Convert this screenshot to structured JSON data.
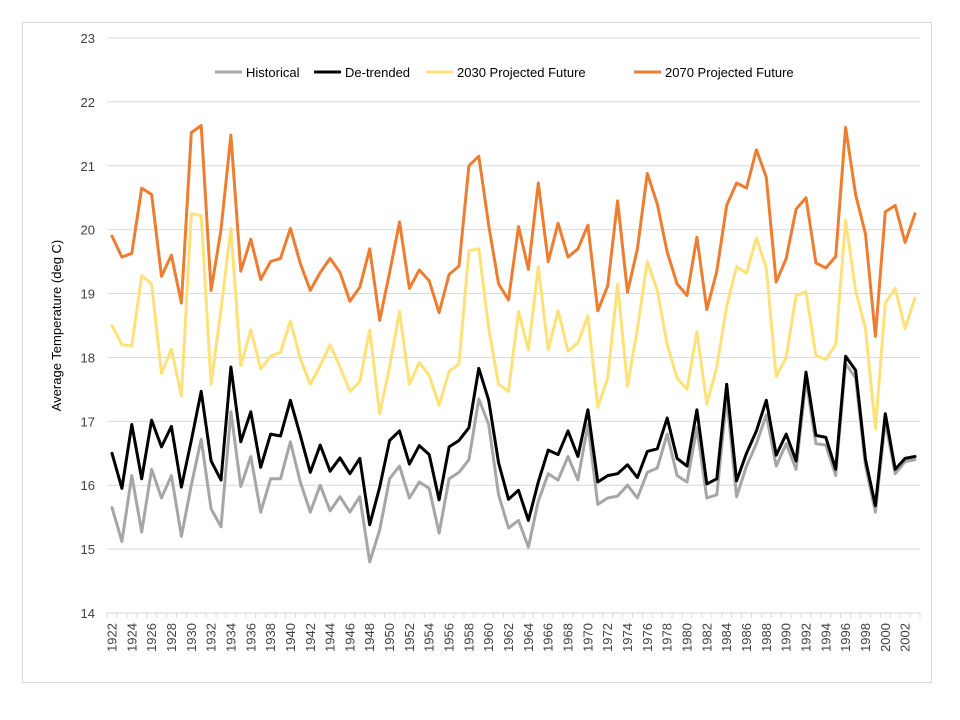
{
  "chart_data": {
    "type": "line",
    "title": "",
    "xlabel": "",
    "ylabel": "Average Temperature (deg C)",
    "ylim": [
      14,
      23
    ],
    "yticks": [
      14,
      15,
      16,
      17,
      18,
      19,
      20,
      21,
      22,
      23
    ],
    "grid": true,
    "legend_position": "top-center",
    "x": [
      1922,
      1923,
      1924,
      1925,
      1926,
      1927,
      1928,
      1929,
      1930,
      1931,
      1932,
      1933,
      1934,
      1935,
      1936,
      1937,
      1938,
      1939,
      1940,
      1941,
      1942,
      1943,
      1944,
      1945,
      1946,
      1947,
      1948,
      1949,
      1950,
      1951,
      1952,
      1953,
      1954,
      1955,
      1956,
      1957,
      1958,
      1959,
      1960,
      1961,
      1962,
      1963,
      1964,
      1965,
      1966,
      1967,
      1968,
      1969,
      1970,
      1971,
      1972,
      1973,
      1974,
      1975,
      1976,
      1977,
      1978,
      1979,
      1980,
      1981,
      1982,
      1983,
      1984,
      1985,
      1986,
      1987,
      1988,
      1989,
      1990,
      1991,
      1992,
      1993,
      1994,
      1995,
      1996,
      1997,
      1998,
      1999,
      2000,
      2001,
      2002,
      2003
    ],
    "x_tick_labels": [
      "1922",
      "1924",
      "1926",
      "1928",
      "1930",
      "1932",
      "1934",
      "1936",
      "1938",
      "1940",
      "1942",
      "1944",
      "1946",
      "1948",
      "1950",
      "1952",
      "1954",
      "1956",
      "1958",
      "1960",
      "1962",
      "1964",
      "1966",
      "1968",
      "1970",
      "1972",
      "1974",
      "1976",
      "1978",
      "1980",
      "1982",
      "1984",
      "1986",
      "1988",
      "1990",
      "1992",
      "1994",
      "1996",
      "1998",
      "2000",
      "2002"
    ],
    "series": [
      {
        "name": "Historical",
        "color": "#a6a6a6",
        "values": [
          15.65,
          15.12,
          16.15,
          15.27,
          16.25,
          15.8,
          16.15,
          15.2,
          16.0,
          16.72,
          15.63,
          15.35,
          17.15,
          15.98,
          16.45,
          15.58,
          16.1,
          16.1,
          16.68,
          16.05,
          15.58,
          16.0,
          15.6,
          15.82,
          15.58,
          15.82,
          14.8,
          15.3,
          16.1,
          16.3,
          15.8,
          16.05,
          15.95,
          15.25,
          16.1,
          16.2,
          16.4,
          17.35,
          16.95,
          15.85,
          15.33,
          15.45,
          15.03,
          15.75,
          16.18,
          16.08,
          16.45,
          16.08,
          16.95,
          15.7,
          15.8,
          15.83,
          16.0,
          15.8,
          16.2,
          16.27,
          16.8,
          16.15,
          16.05,
          16.9,
          15.8,
          15.85,
          17.38,
          15.82,
          16.3,
          16.65,
          17.1,
          16.3,
          16.65,
          16.25,
          17.65,
          16.65,
          16.63,
          16.15,
          17.9,
          17.68,
          16.3,
          15.58,
          17.0,
          16.18,
          16.37,
          16.4
        ]
      },
      {
        "name": "De-trended",
        "color": "#000000",
        "values": [
          16.5,
          15.95,
          16.95,
          16.1,
          17.02,
          16.6,
          16.92,
          15.97,
          16.7,
          17.47,
          16.38,
          16.08,
          17.85,
          16.68,
          17.15,
          16.28,
          16.8,
          16.77,
          17.33,
          16.78,
          16.2,
          16.63,
          16.22,
          16.43,
          16.18,
          16.42,
          15.38,
          15.97,
          16.7,
          16.85,
          16.33,
          16.62,
          16.48,
          15.77,
          16.6,
          16.7,
          16.9,
          17.83,
          17.33,
          16.35,
          15.78,
          15.92,
          15.45,
          16.05,
          16.55,
          16.48,
          16.85,
          16.45,
          17.18,
          16.05,
          16.15,
          16.18,
          16.32,
          16.12,
          16.53,
          16.57,
          17.05,
          16.42,
          16.3,
          17.18,
          16.02,
          16.1,
          17.58,
          16.07,
          16.5,
          16.85,
          17.33,
          16.47,
          16.8,
          16.38,
          17.77,
          16.78,
          16.75,
          16.25,
          18.02,
          17.8,
          16.4,
          15.68,
          17.12,
          16.25,
          16.42,
          16.45
        ]
      },
      {
        "name": "2030 Projected Future",
        "color": "#ffe17a",
        "values": [
          18.5,
          18.2,
          18.18,
          19.28,
          19.15,
          17.75,
          18.13,
          17.4,
          20.25,
          20.22,
          17.58,
          18.75,
          20.02,
          17.87,
          18.43,
          17.82,
          18.02,
          18.08,
          18.57,
          17.98,
          17.58,
          17.87,
          18.2,
          17.85,
          17.47,
          17.62,
          18.43,
          17.12,
          17.85,
          18.72,
          17.58,
          17.92,
          17.72,
          17.25,
          17.78,
          17.9,
          19.67,
          19.7,
          18.45,
          17.58,
          17.47,
          18.72,
          18.12,
          19.42,
          18.12,
          18.73,
          18.1,
          18.23,
          18.65,
          17.22,
          17.68,
          19.15,
          17.55,
          18.45,
          19.5,
          19.05,
          18.2,
          17.68,
          17.5,
          18.4,
          17.27,
          17.85,
          18.8,
          19.42,
          19.32,
          19.87,
          19.4,
          17.7,
          18.0,
          18.97,
          19.03,
          18.03,
          17.97,
          18.2,
          20.15,
          19.05,
          18.45,
          16.88,
          18.85,
          19.08,
          18.45,
          18.93
        ]
      },
      {
        "name": "2070 Projected Future",
        "color": "#ed7d31",
        "values": [
          19.9,
          19.57,
          19.63,
          20.65,
          20.55,
          19.27,
          19.6,
          18.85,
          21.52,
          21.63,
          19.05,
          20.0,
          21.48,
          19.35,
          19.85,
          19.22,
          19.5,
          19.55,
          20.02,
          19.47,
          19.05,
          19.33,
          19.55,
          19.33,
          18.88,
          19.1,
          19.7,
          18.58,
          19.33,
          20.12,
          19.08,
          19.37,
          19.2,
          18.7,
          19.3,
          19.43,
          21.0,
          21.15,
          20.07,
          19.15,
          18.9,
          20.05,
          19.38,
          20.73,
          19.5,
          20.1,
          19.57,
          19.7,
          20.07,
          18.73,
          19.12,
          20.45,
          19.02,
          19.7,
          20.88,
          20.4,
          19.65,
          19.15,
          18.97,
          19.88,
          18.75,
          19.35,
          20.38,
          20.73,
          20.65,
          21.25,
          20.82,
          19.18,
          19.55,
          20.32,
          20.5,
          19.48,
          19.4,
          19.58,
          21.6,
          20.55,
          19.93,
          18.33,
          20.28,
          20.38,
          19.8,
          20.25
        ]
      }
    ]
  }
}
